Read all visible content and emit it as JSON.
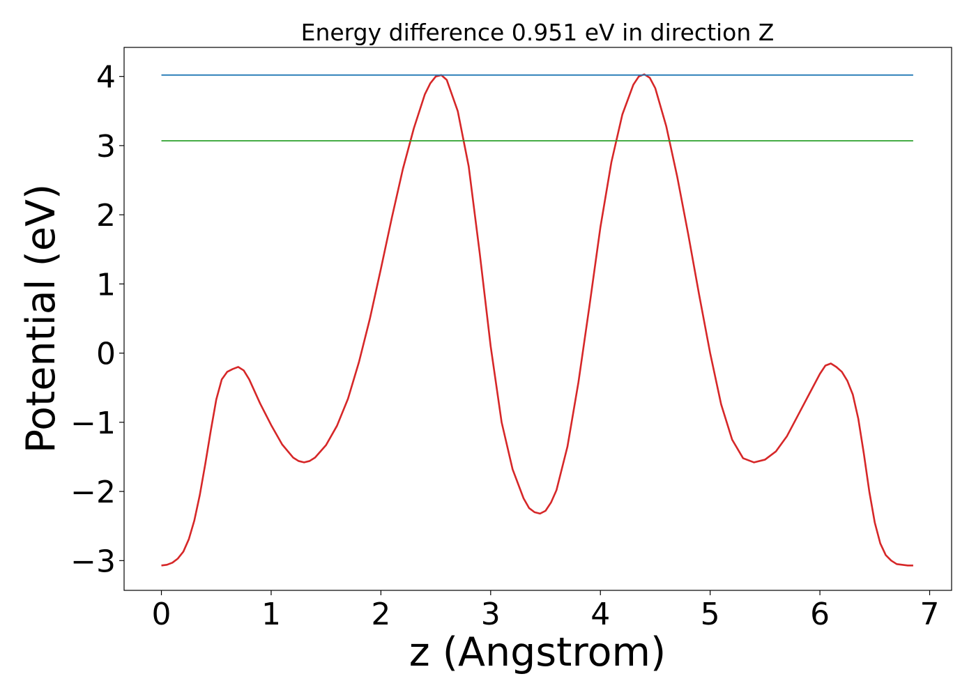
{
  "chart_data": {
    "type": "line",
    "title": "Energy difference 0.951 eV in direction Z",
    "xlabel": "z (Angstrom)",
    "ylabel": "Potential (eV)",
    "xlim": [
      -0.34,
      7.2
    ],
    "ylim": [
      -3.43,
      4.42
    ],
    "xticks": [
      {
        "value": 0,
        "label": "0"
      },
      {
        "value": 1,
        "label": "1"
      },
      {
        "value": 2,
        "label": "2"
      },
      {
        "value": 3,
        "label": "3"
      },
      {
        "value": 4,
        "label": "4"
      },
      {
        "value": 5,
        "label": "5"
      },
      {
        "value": 6,
        "label": "6"
      },
      {
        "value": 7,
        "label": "7"
      }
    ],
    "yticks": [
      {
        "value": -3,
        "label": "−3"
      },
      {
        "value": -2,
        "label": "−2"
      },
      {
        "value": -1,
        "label": "−1"
      },
      {
        "value": 0,
        "label": "0"
      },
      {
        "value": 1,
        "label": "1"
      },
      {
        "value": 2,
        "label": "2"
      },
      {
        "value": 3,
        "label": "3"
      },
      {
        "value": 4,
        "label": "4"
      }
    ],
    "grid": false,
    "legend": "none",
    "series": [
      {
        "color": "#d62728",
        "x": [
          0.0,
          0.05,
          0.1,
          0.15,
          0.2,
          0.25,
          0.3,
          0.35,
          0.4,
          0.45,
          0.5,
          0.55,
          0.6,
          0.65,
          0.7,
          0.75,
          0.8,
          0.9,
          1.0,
          1.1,
          1.2,
          1.25,
          1.3,
          1.35,
          1.4,
          1.5,
          1.6,
          1.7,
          1.8,
          1.9,
          2.0,
          2.1,
          2.2,
          2.3,
          2.4,
          2.45,
          2.5,
          2.55,
          2.6,
          2.7,
          2.8,
          2.9,
          3.0,
          3.1,
          3.2,
          3.3,
          3.35,
          3.4,
          3.45,
          3.5,
          3.55,
          3.6,
          3.7,
          3.8,
          3.9,
          4.0,
          4.1,
          4.2,
          4.3,
          4.35,
          4.4,
          4.45,
          4.5,
          4.6,
          4.7,
          4.8,
          4.9,
          5.0,
          5.1,
          5.2,
          5.3,
          5.4,
          5.5,
          5.6,
          5.7,
          5.8,
          5.9,
          6.0,
          6.05,
          6.1,
          6.15,
          6.2,
          6.25,
          6.3,
          6.35,
          6.4,
          6.45,
          6.5,
          6.55,
          6.6,
          6.65,
          6.7,
          6.75,
          6.8,
          6.85
        ],
        "y": [
          -3.07,
          -3.06,
          -3.03,
          -2.97,
          -2.87,
          -2.69,
          -2.42,
          -2.05,
          -1.6,
          -1.12,
          -0.67,
          -0.38,
          -0.27,
          -0.23,
          -0.2,
          -0.25,
          -0.38,
          -0.73,
          -1.04,
          -1.32,
          -1.51,
          -1.56,
          -1.58,
          -1.56,
          -1.51,
          -1.33,
          -1.05,
          -0.66,
          -0.13,
          0.5,
          1.22,
          1.96,
          2.66,
          3.25,
          3.74,
          3.9,
          4.0,
          4.02,
          3.95,
          3.5,
          2.7,
          1.45,
          0.1,
          -1.0,
          -1.68,
          -2.1,
          -2.24,
          -2.3,
          -2.32,
          -2.28,
          -2.16,
          -1.98,
          -1.35,
          -0.42,
          0.68,
          1.82,
          2.76,
          3.45,
          3.88,
          4.0,
          4.03,
          3.98,
          3.83,
          3.28,
          2.55,
          1.72,
          0.84,
          0.0,
          -0.74,
          -1.25,
          -1.52,
          -1.58,
          -1.54,
          -1.42,
          -1.2,
          -0.9,
          -0.6,
          -0.3,
          -0.18,
          -0.15,
          -0.2,
          -0.27,
          -0.4,
          -0.6,
          -0.95,
          -1.45,
          -2.0,
          -2.45,
          -2.75,
          -2.92,
          -3.0,
          -3.05,
          -3.06,
          -3.07,
          -3.07
        ]
      },
      {
        "color": "#1f77b4",
        "x": [
          0.0,
          6.85
        ],
        "y": [
          4.02,
          4.02
        ]
      },
      {
        "color": "#2ca02c",
        "x": [
          0.0,
          6.85
        ],
        "y": [
          3.07,
          3.07
        ]
      }
    ]
  }
}
